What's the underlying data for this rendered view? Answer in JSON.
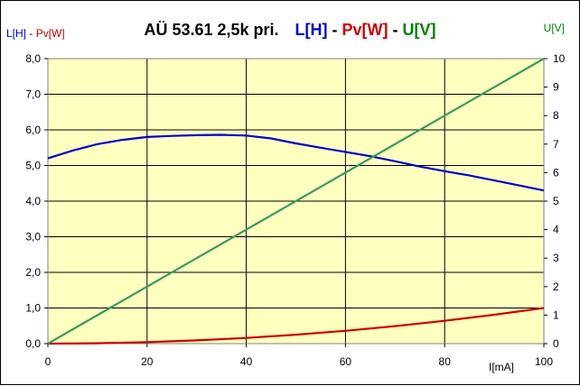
{
  "chart_data": {
    "type": "line",
    "title_parts": [
      {
        "text": "AÜ  53.61 2,5k pri.",
        "color": "#000000"
      },
      {
        "text": "L[H]",
        "color": "#0000CC"
      },
      {
        "text": " - ",
        "color": "#000000"
      },
      {
        "text": "Pv[W]",
        "color": "#CC0000"
      },
      {
        "text": " - ",
        "color": "#000000"
      },
      {
        "text": "U[V]",
        "color": "#008000"
      }
    ],
    "ylabel_left_parts": [
      {
        "text": "L[H]",
        "color": "#0000CC"
      },
      {
        "text": " - ",
        "color": "#000000"
      },
      {
        "text": "Pv[W]",
        "color": "#CC0000"
      }
    ],
    "ylabel_right": "U[V]",
    "xlabel": "I[mA]",
    "xlim": [
      0,
      100
    ],
    "ylim_left": [
      0,
      8
    ],
    "ylim_right": [
      0,
      10
    ],
    "x_ticks": [
      0,
      20,
      40,
      60,
      80,
      100
    ],
    "y_left_ticks": [
      "0,0",
      "1,0",
      "2,0",
      "3,0",
      "4,0",
      "5,0",
      "6,0",
      "7,0",
      "8,0"
    ],
    "y_right_ticks": [
      "0",
      "1",
      "2",
      "3",
      "4",
      "5",
      "6",
      "7",
      "8",
      "9",
      "10"
    ],
    "plot_background": "#FFFFC0",
    "grid": true,
    "series": [
      {
        "name": "L[H]",
        "axis": "left",
        "color": "#0000CC",
        "x": [
          0,
          5,
          10,
          15,
          20,
          25,
          30,
          35,
          40,
          45,
          50,
          55,
          60,
          65,
          70,
          75,
          80,
          85,
          90,
          95,
          100
        ],
        "y": [
          5.2,
          5.42,
          5.6,
          5.72,
          5.8,
          5.83,
          5.85,
          5.86,
          5.84,
          5.76,
          5.62,
          5.5,
          5.38,
          5.26,
          5.12,
          4.97,
          4.84,
          4.72,
          4.58,
          4.44,
          4.3
        ]
      },
      {
        "name": "Pv[W]",
        "axis": "left",
        "color": "#CC0000",
        "x": [
          0,
          10,
          20,
          30,
          40,
          50,
          60,
          70,
          80,
          90,
          100
        ],
        "y": [
          0.0,
          0.01,
          0.04,
          0.09,
          0.16,
          0.25,
          0.36,
          0.49,
          0.64,
          0.81,
          1.0
        ]
      },
      {
        "name": "U[V]",
        "axis": "right",
        "color": "#3A9A5C",
        "x": [
          0,
          100
        ],
        "y": [
          0,
          10
        ]
      }
    ]
  }
}
